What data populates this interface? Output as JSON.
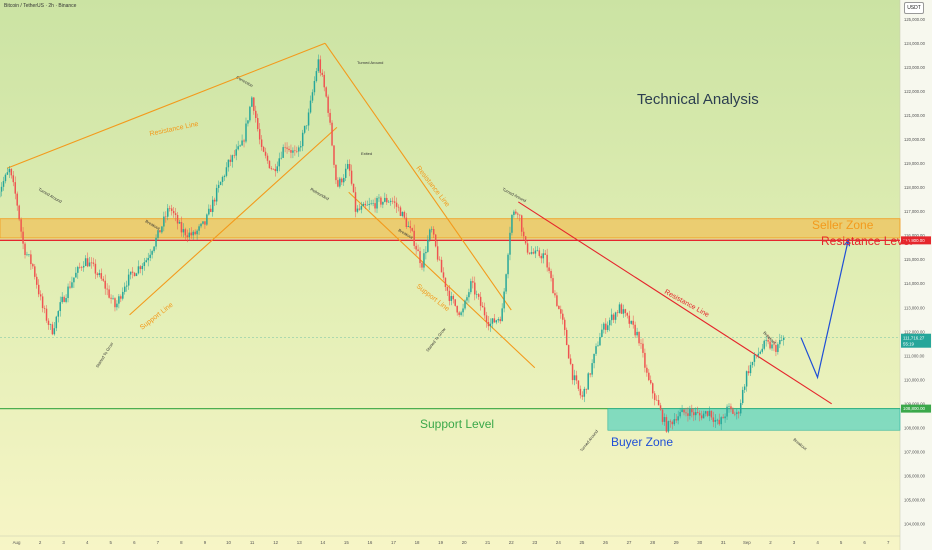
{
  "header": {
    "title": "Bitcoin / TetherUS · 2h · Binance",
    "currency": "USDT"
  },
  "chart_data": {
    "type": "candlestick",
    "title": "Technical Analysis",
    "ylim": [
      103500,
      125800
    ],
    "yticks": [
      104000,
      105000,
      106000,
      107000,
      108000,
      109000,
      110000,
      111000,
      112000,
      113000,
      114000,
      115000,
      116000,
      117000,
      118000,
      119000,
      120000,
      121000,
      122000,
      123000,
      124000,
      125000
    ],
    "ytick_labels": [
      "104,000.00",
      "105,000.00",
      "106,000.00",
      "107,000.00",
      "108,000.00",
      "109,000.00",
      "110,000.00",
      "111,000.00",
      "112,000.00",
      "113,000.00",
      "114,000.00",
      "115,000.00",
      "116,000.00",
      "117,000.00",
      "118,000.00",
      "119,000.00",
      "120,000.00",
      "121,000.00",
      "122,000.00",
      "123,000.00",
      "124,000.00",
      "125,000.00"
    ],
    "xlim": [
      31.3,
      69.5
    ],
    "xtick_labels": [
      {
        "d": 31,
        "label": "31"
      },
      {
        "d": 32,
        "label": "Aug"
      },
      {
        "d": 33,
        "label": "2"
      },
      {
        "d": 34,
        "label": "3"
      },
      {
        "d": 35,
        "label": "4"
      },
      {
        "d": 36,
        "label": "5"
      },
      {
        "d": 37,
        "label": "6"
      },
      {
        "d": 38,
        "label": "7"
      },
      {
        "d": 39,
        "label": "8"
      },
      {
        "d": 40,
        "label": "9"
      },
      {
        "d": 41,
        "label": "10"
      },
      {
        "d": 42,
        "label": "11"
      },
      {
        "d": 43,
        "label": "12"
      },
      {
        "d": 44,
        "label": "13"
      },
      {
        "d": 45,
        "label": "14"
      },
      {
        "d": 46,
        "label": "15"
      },
      {
        "d": 47,
        "label": "16"
      },
      {
        "d": 48,
        "label": "17"
      },
      {
        "d": 49,
        "label": "18"
      },
      {
        "d": 50,
        "label": "19"
      },
      {
        "d": 51,
        "label": "20"
      },
      {
        "d": 52,
        "label": "21"
      },
      {
        "d": 53,
        "label": "22"
      },
      {
        "d": 54,
        "label": "23"
      },
      {
        "d": 55,
        "label": "24"
      },
      {
        "d": 56,
        "label": "25"
      },
      {
        "d": 57,
        "label": "26"
      },
      {
        "d": 58,
        "label": "27"
      },
      {
        "d": 59,
        "label": "28"
      },
      {
        "d": 60,
        "label": "29"
      },
      {
        "d": 61,
        "label": "30"
      },
      {
        "d": 62,
        "label": "31"
      },
      {
        "d": 63,
        "label": "Sep"
      },
      {
        "d": 64,
        "label": "2"
      },
      {
        "d": 65,
        "label": "3"
      },
      {
        "d": 66,
        "label": "4"
      },
      {
        "d": 67,
        "label": "5"
      },
      {
        "d": 68,
        "label": "6"
      },
      {
        "d": 69,
        "label": "7"
      }
    ],
    "price_path": [
      [
        31.2,
        117800
      ],
      [
        31.7,
        118700
      ],
      [
        32.0,
        117500
      ],
      [
        32.3,
        115500
      ],
      [
        32.7,
        114700
      ],
      [
        33.1,
        113000
      ],
      [
        33.5,
        112000
      ],
      [
        33.9,
        113200
      ],
      [
        34.4,
        114200
      ],
      [
        34.9,
        115000
      ],
      [
        35.3,
        114600
      ],
      [
        35.7,
        114000
      ],
      [
        36.2,
        113000
      ],
      [
        36.6,
        114000
      ],
      [
        37.0,
        114500
      ],
      [
        37.5,
        115000
      ],
      [
        38.0,
        116000
      ],
      [
        38.5,
        117200
      ],
      [
        39.0,
        116200
      ],
      [
        39.5,
        116000
      ],
      [
        40.0,
        116500
      ],
      [
        40.5,
        117800
      ],
      [
        41.0,
        119000
      ],
      [
        41.6,
        119800
      ],
      [
        42.0,
        121800
      ],
      [
        42.4,
        119500
      ],
      [
        42.9,
        118700
      ],
      [
        43.4,
        119800
      ],
      [
        43.9,
        119300
      ],
      [
        44.4,
        121000
      ],
      [
        44.8,
        123300
      ],
      [
        45.2,
        121500
      ],
      [
        45.6,
        118000
      ],
      [
        46.1,
        118900
      ],
      [
        46.4,
        117000
      ],
      [
        46.9,
        117200
      ],
      [
        47.4,
        117400
      ],
      [
        47.9,
        117500
      ],
      [
        48.3,
        117000
      ],
      [
        48.8,
        116000
      ],
      [
        49.2,
        114800
      ],
      [
        49.6,
        116300
      ],
      [
        50.0,
        114600
      ],
      [
        50.4,
        113400
      ],
      [
        50.9,
        112700
      ],
      [
        51.3,
        114000
      ],
      [
        51.7,
        113100
      ],
      [
        52.1,
        112300
      ],
      [
        52.6,
        112700
      ],
      [
        53.0,
        116800
      ],
      [
        53.3,
        117100
      ],
      [
        53.6,
        115500
      ],
      [
        54.0,
        115200
      ],
      [
        54.4,
        115200
      ],
      [
        54.8,
        113700
      ],
      [
        55.2,
        112300
      ],
      [
        55.6,
        110200
      ],
      [
        56.0,
        109200
      ],
      [
        56.4,
        110500
      ],
      [
        56.8,
        112000
      ],
      [
        57.2,
        112500
      ],
      [
        57.6,
        113000
      ],
      [
        58.0,
        112400
      ],
      [
        58.4,
        111800
      ],
      [
        58.8,
        110000
      ],
      [
        59.2,
        109000
      ],
      [
        59.6,
        108000
      ],
      [
        60.0,
        108500
      ],
      [
        60.5,
        108700
      ],
      [
        61.0,
        108500
      ],
      [
        61.4,
        108700
      ],
      [
        61.8,
        108100
      ],
      [
        62.2,
        108800
      ],
      [
        62.6,
        108500
      ],
      [
        63.0,
        110300
      ],
      [
        63.4,
        111000
      ],
      [
        63.8,
        111500
      ],
      [
        64.2,
        111300
      ],
      [
        64.6,
        111750
      ]
    ],
    "key_levels": {
      "seller_zone": [
        115900,
        116700
      ],
      "resistance_level": 115800,
      "support_level": 108800,
      "buyer_zone": [
        107900,
        108800
      ]
    },
    "projection": [
      [
        65.3,
        111750
      ],
      [
        66.0,
        110100
      ],
      [
        67.3,
        115800
      ]
    ],
    "price_tags": {
      "resistance": "115,800.00",
      "current": "111,716.27",
      "countdown": "55:19",
      "support": "108,800.00"
    },
    "annotations": {
      "technical_analysis": "Technical Analysis",
      "seller_zone": "Seller Zone",
      "resistance_level": "Resistance Level",
      "support_level": "Support Level",
      "buyer_zone": "Buyer Zone",
      "resistance_line": "Resistance Line",
      "support_line": "Support Line",
      "turned_around": "Turned Around",
      "correction": "Correction",
      "exited": "Exited",
      "breakout": "Breakout",
      "rebounded": "Rebounded",
      "started_to_grow": "Started To Grow"
    },
    "colors": {
      "up": "#26a69a",
      "down": "#ef5350",
      "orange": "#f39a1c",
      "red": "#e5262c",
      "green": "#4caf50",
      "blue": "#1f4fd6",
      "teal_zone": "#5fd3bf"
    }
  }
}
